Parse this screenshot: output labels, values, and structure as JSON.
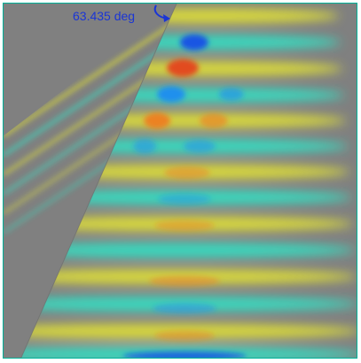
{
  "annotation": {
    "angle_text": "63.435 deg",
    "color": "#1a35d6"
  },
  "colormap": {
    "background": "#808080",
    "positive_mid": "#e6e632",
    "positive_high": "#f07a1e",
    "positive_peak": "#e4451a",
    "negative_mid": "#2ee6c8",
    "negative_high": "#1e8cf0",
    "negative_peak": "#1450e6",
    "frame_color": "#00b39a"
  },
  "icons": {
    "pointer": "curved-arrow-icon"
  }
}
